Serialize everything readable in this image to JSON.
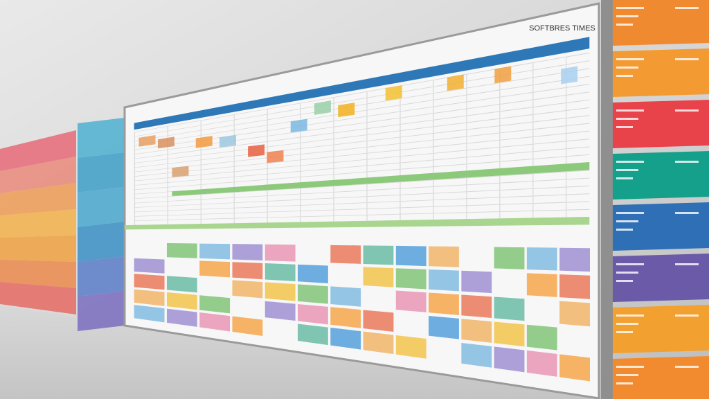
{
  "board": {
    "title": "SOFTBRES TIMES"
  }
}
